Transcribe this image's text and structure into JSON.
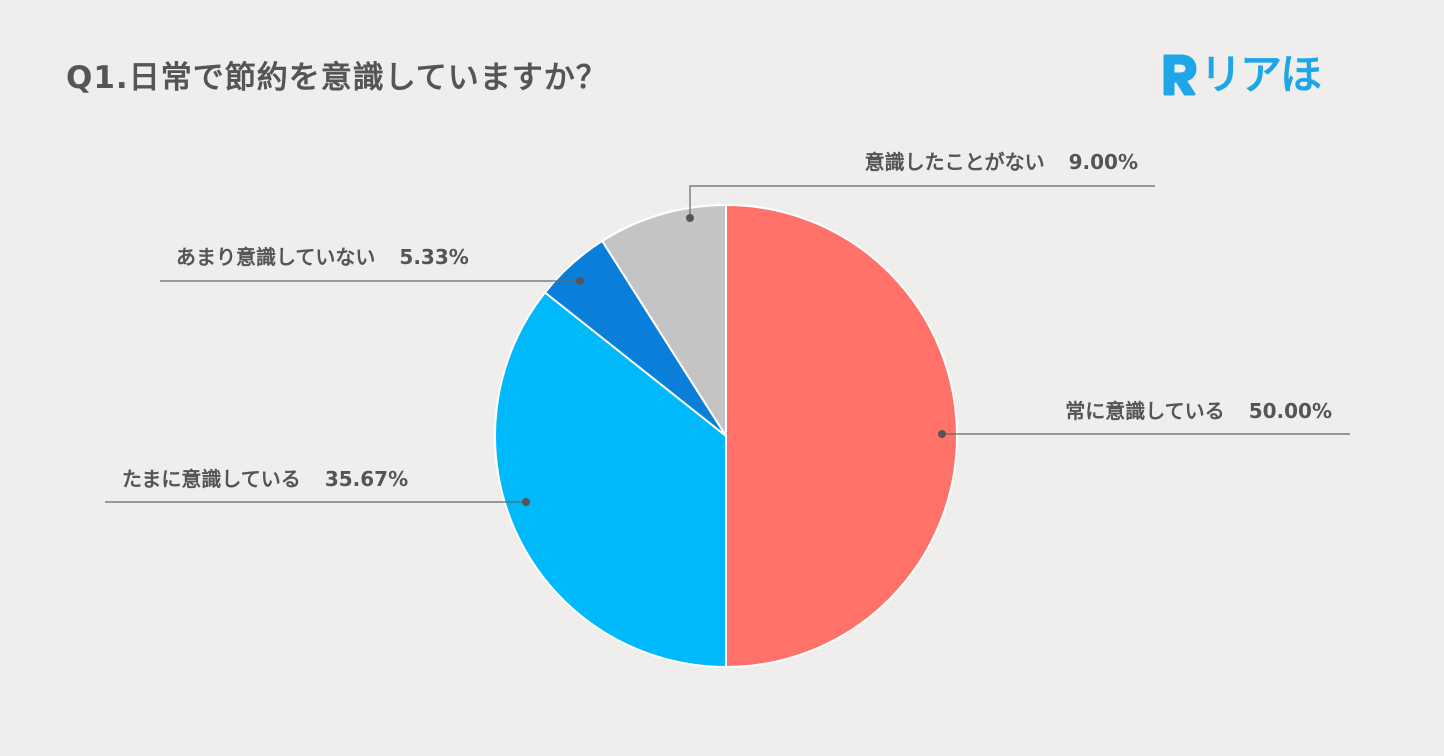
{
  "title": "Q1.日常で節約を意識していますか？",
  "logo": {
    "text": "リアほ",
    "mark": "R",
    "color": "#1fa6e8"
  },
  "chart_data": {
    "type": "pie",
    "title": "Q1.日常で節約を意識していますか？",
    "slices": [
      {
        "label": "常に意識している",
        "value": 50.0,
        "display": "50.00%",
        "color": "#ff7169"
      },
      {
        "label": "たまに意識している",
        "value": 35.67,
        "display": "35.67%",
        "color": "#00b9fb"
      },
      {
        "label": "あまり意識していない",
        "value": 5.33,
        "display": "5.33%",
        "color": "#0a7fd9"
      },
      {
        "label": "意識したことがない",
        "value": 9.0,
        "display": "9.00%",
        "color": "#c4c4c4"
      }
    ],
    "start": "12 o'clock",
    "direction": "clockwise",
    "legend": "none (callout labels)"
  }
}
